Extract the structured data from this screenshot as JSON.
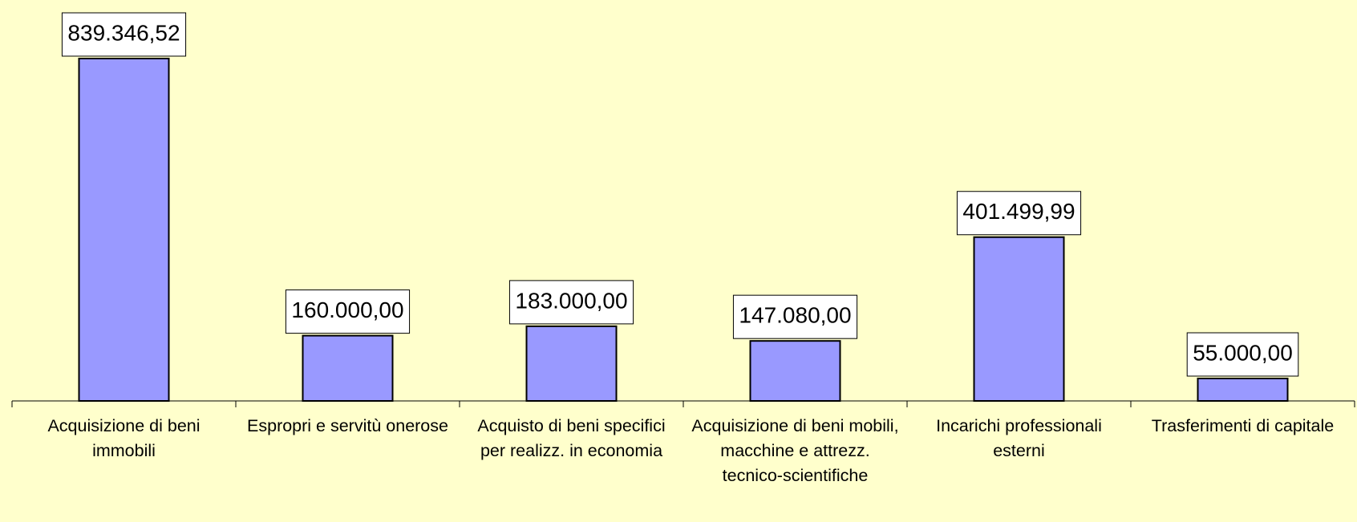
{
  "chart_data": {
    "type": "bar",
    "categories": [
      "Acquisizione di beni immobili",
      "Espropri e servitù onerose",
      "Acquisto di beni specifici per realizz. in economia",
      "Acquisizione di beni mobili, macchine e attrezz. tecnico-scientifiche",
      "Incarichi professionali esterni",
      "Trasferimenti di capitale"
    ],
    "values": [
      839346.52,
      160000,
      183000,
      147080,
      401499.99,
      55000
    ],
    "value_labels": [
      "839.346,52",
      "160.000,00",
      "183.000,00",
      "147.080,00",
      "401.499,99",
      "55.000,00"
    ],
    "color": "#9999ff"
  }
}
